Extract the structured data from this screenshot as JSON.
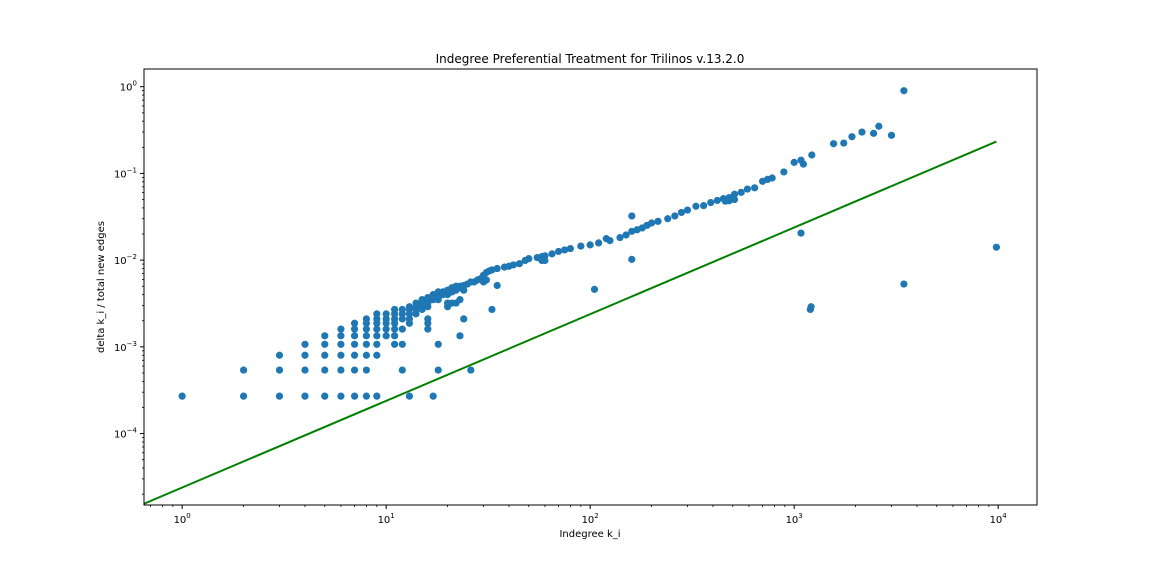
{
  "chart_data": {
    "type": "scatter",
    "title": "Indegree Preferential Treatment for Trilinos v.13.2.0",
    "xlabel": "Indegree k_i",
    "ylabel": "delta k_i / total new edges",
    "xscale": "log",
    "yscale": "log",
    "xlim": [
      0.65,
      15500
    ],
    "ylim": [
      1.5e-05,
      1.6
    ],
    "x_ticks": [
      {
        "value": 1,
        "base": "10",
        "exp": "0"
      },
      {
        "value": 10,
        "base": "10",
        "exp": "1"
      },
      {
        "value": 100,
        "base": "10",
        "exp": "2"
      },
      {
        "value": 1000,
        "base": "10",
        "exp": "3"
      },
      {
        "value": 10000,
        "base": "10",
        "exp": "4"
      }
    ],
    "y_ticks": [
      {
        "value": 0.0001,
        "base": "10",
        "exp": "−4"
      },
      {
        "value": 0.001,
        "base": "10",
        "exp": "−3"
      },
      {
        "value": 0.01,
        "base": "10",
        "exp": "−2"
      },
      {
        "value": 0.1,
        "base": "10",
        "exp": "−1"
      },
      {
        "value": 1,
        "base": "10",
        "exp": "0"
      }
    ],
    "grid": false,
    "series": [
      {
        "color": "#1f77b4",
        "marker": "circle",
        "points": [
          [
            1,
            0.00027
          ],
          [
            2,
            0.00027
          ],
          [
            2,
            0.00054
          ],
          [
            3,
            0.00027
          ],
          [
            3,
            0.00054
          ],
          [
            3,
            0.0008
          ],
          [
            4,
            0.00027
          ],
          [
            4,
            0.00054
          ],
          [
            4,
            0.0008
          ],
          [
            4,
            0.00107
          ],
          [
            5,
            0.00027
          ],
          [
            5,
            0.00054
          ],
          [
            5,
            0.0008
          ],
          [
            5,
            0.00107
          ],
          [
            5,
            0.00134
          ],
          [
            6,
            0.00027
          ],
          [
            6,
            0.00054
          ],
          [
            6,
            0.0008
          ],
          [
            6,
            0.00107
          ],
          [
            6,
            0.00134
          ],
          [
            6,
            0.0016
          ],
          [
            7,
            0.00027
          ],
          [
            7,
            0.00054
          ],
          [
            7,
            0.0008
          ],
          [
            7,
            0.00107
          ],
          [
            7,
            0.00134
          ],
          [
            7,
            0.0016
          ],
          [
            7,
            0.00187
          ],
          [
            8,
            0.00027
          ],
          [
            8,
            0.00054
          ],
          [
            8,
            0.0008
          ],
          [
            8,
            0.00107
          ],
          [
            8,
            0.00134
          ],
          [
            8,
            0.0016
          ],
          [
            8,
            0.00187
          ],
          [
            8,
            0.0021
          ],
          [
            9,
            0.00027
          ],
          [
            9,
            0.0008
          ],
          [
            9,
            0.00107
          ],
          [
            9,
            0.00134
          ],
          [
            9,
            0.0016
          ],
          [
            9,
            0.00187
          ],
          [
            9,
            0.0021
          ],
          [
            9,
            0.0024
          ],
          [
            10,
            0.00134
          ],
          [
            10,
            0.0016
          ],
          [
            10,
            0.00187
          ],
          [
            10,
            0.0021
          ],
          [
            10,
            0.0024
          ],
          [
            11,
            0.00107
          ],
          [
            11,
            0.00134
          ],
          [
            11,
            0.0016
          ],
          [
            11,
            0.00187
          ],
          [
            11,
            0.0021
          ],
          [
            11,
            0.0024
          ],
          [
            11,
            0.0027
          ],
          [
            12,
            0.00054
          ],
          [
            12,
            0.00107
          ],
          [
            12,
            0.0016
          ],
          [
            12,
            0.0021
          ],
          [
            12,
            0.0024
          ],
          [
            12,
            0.0027
          ],
          [
            13,
            0.00027
          ],
          [
            13,
            0.00187
          ],
          [
            13,
            0.0021
          ],
          [
            13,
            0.0024
          ],
          [
            13,
            0.0027
          ],
          [
            13,
            0.0029
          ],
          [
            14,
            0.0024
          ],
          [
            14,
            0.0027
          ],
          [
            14,
            0.0029
          ],
          [
            14,
            0.0032
          ],
          [
            15,
            0.0027
          ],
          [
            15,
            0.0029
          ],
          [
            15,
            0.0032
          ],
          [
            15,
            0.0035
          ],
          [
            16,
            0.0016
          ],
          [
            16,
            0.00187
          ],
          [
            16,
            0.0021
          ],
          [
            16,
            0.0029
          ],
          [
            16,
            0.0032
          ],
          [
            16,
            0.0035
          ],
          [
            16,
            0.0037
          ],
          [
            17,
            0.00027
          ],
          [
            17,
            0.0035
          ],
          [
            17,
            0.0037
          ],
          [
            17,
            0.004
          ],
          [
            18,
            0.00054
          ],
          [
            18,
            0.00107
          ],
          [
            18,
            0.0035
          ],
          [
            18,
            0.0037
          ],
          [
            18,
            0.004
          ],
          [
            18,
            0.0043
          ],
          [
            19,
            0.004
          ],
          [
            19,
            0.0043
          ],
          [
            20,
            0.0029
          ],
          [
            20,
            0.0032
          ],
          [
            20,
            0.004
          ],
          [
            20,
            0.0043
          ],
          [
            20,
            0.0045
          ],
          [
            21,
            0.0032
          ],
          [
            21,
            0.0043
          ],
          [
            21,
            0.0048
          ],
          [
            22,
            0.0032
          ],
          [
            22,
            0.0045
          ],
          [
            22,
            0.005
          ],
          [
            23,
            0.00134
          ],
          [
            23,
            0.0035
          ],
          [
            23,
            0.0048
          ],
          [
            23,
            0.005
          ],
          [
            24,
            0.0021
          ],
          [
            24,
            0.0045
          ],
          [
            24,
            0.0051
          ],
          [
            25,
            0.0053
          ],
          [
            26,
            0.00054
          ],
          [
            26,
            0.0056
          ],
          [
            27,
            0.0056
          ],
          [
            28,
            0.0059
          ],
          [
            29,
            0.0061
          ],
          [
            30,
            0.0056
          ],
          [
            30,
            0.0064
          ],
          [
            30,
            0.0067
          ],
          [
            31,
            0.0059
          ],
          [
            31,
            0.0072
          ],
          [
            32,
            0.0075
          ],
          [
            33,
            0.0027
          ],
          [
            33,
            0.0077
          ],
          [
            35,
            0.0051
          ],
          [
            35,
            0.008
          ],
          [
            38,
            0.0083
          ],
          [
            40,
            0.0085
          ],
          [
            42,
            0.0088
          ],
          [
            45,
            0.0091
          ],
          [
            48,
            0.0099
          ],
          [
            50,
            0.0104
          ],
          [
            55,
            0.0107
          ],
          [
            58,
            0.0099
          ],
          [
            58,
            0.011
          ],
          [
            60,
            0.0112
          ],
          [
            60,
            0.0099
          ],
          [
            65,
            0.0118
          ],
          [
            70,
            0.0126
          ],
          [
            75,
            0.0131
          ],
          [
            80,
            0.0136
          ],
          [
            90,
            0.0145
          ],
          [
            100,
            0.015
          ],
          [
            105,
            0.0046
          ],
          [
            110,
            0.0158
          ],
          [
            120,
            0.0177
          ],
          [
            125,
            0.0168
          ],
          [
            140,
            0.0182
          ],
          [
            150,
            0.0195
          ],
          [
            160,
            0.0102
          ],
          [
            160,
            0.0215
          ],
          [
            160,
            0.0323
          ],
          [
            170,
            0.0224
          ],
          [
            180,
            0.0235
          ],
          [
            190,
            0.0252
          ],
          [
            200,
            0.0268
          ],
          [
            215,
            0.028
          ],
          [
            240,
            0.03
          ],
          [
            260,
            0.0323
          ],
          [
            280,
            0.0355
          ],
          [
            300,
            0.0378
          ],
          [
            330,
            0.0418
          ],
          [
            360,
            0.0425
          ],
          [
            390,
            0.0461
          ],
          [
            420,
            0.0488
          ],
          [
            450,
            0.0512
          ],
          [
            480,
            0.0527
          ],
          [
            510,
            0.0575
          ],
          [
            550,
            0.0605
          ],
          [
            590,
            0.066
          ],
          [
            640,
            0.0682
          ],
          [
            700,
            0.0811
          ],
          [
            740,
            0.0853
          ],
          [
            780,
            0.0885
          ],
          [
            890,
            0.104
          ],
          [
            1000,
            0.134
          ],
          [
            1080,
            0.142
          ],
          [
            1110,
            0.128
          ],
          [
            1220,
            0.163
          ],
          [
            1560,
            0.22
          ],
          [
            1750,
            0.224
          ],
          [
            1920,
            0.265
          ],
          [
            2150,
            0.3
          ],
          [
            2450,
            0.29
          ],
          [
            2600,
            0.35
          ],
          [
            3000,
            0.275
          ],
          [
            480,
            0.0484
          ],
          [
            460,
            0.0478
          ]
        ]
      },
      {
        "color": "#1f77b4",
        "marker": "circle",
        "points": [
          [
            510,
            0.05
          ],
          [
            1080,
            0.0205
          ],
          [
            1200,
            0.0027
          ],
          [
            1210,
            0.0029
          ],
          [
            3450,
            0.9
          ],
          [
            3450,
            0.0053
          ],
          [
            9800,
            0.0141
          ]
        ]
      },
      {
        "color": "#008000",
        "marker": "line",
        "points": [
          [
            0.65,
            1.55e-05
          ],
          [
            9800,
            0.233
          ]
        ]
      }
    ]
  }
}
